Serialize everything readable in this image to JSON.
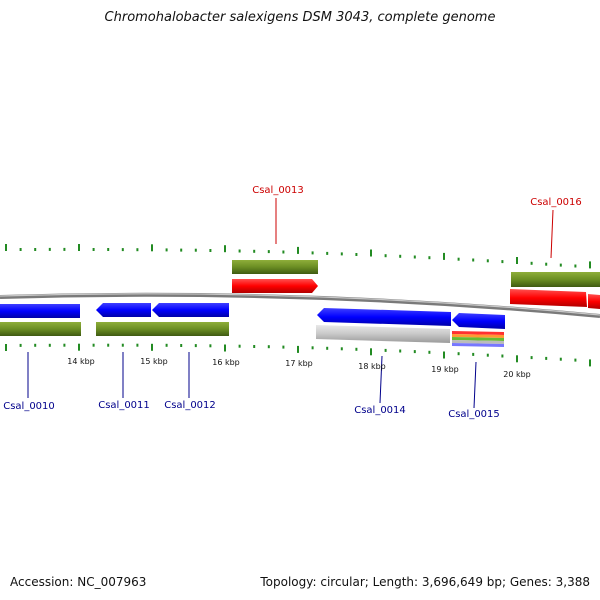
{
  "title": "Chromohalobacter salexigens DSM 3043, complete genome",
  "footer": {
    "accession": "Accession: NC_007963",
    "summary": "Topology: circular; Length: 3,696,649 bp; Genes: 3,388"
  },
  "scale_labels": [
    "14 kbp",
    "15 kbp",
    "16 kbp",
    "17 kbp",
    "18 kbp",
    "19 kbp",
    "20 kbp"
  ],
  "gene_labels": {
    "Csal_0010": "Csal_0010",
    "Csal_0011": "Csal_0011",
    "Csal_0012": "Csal_0012",
    "Csal_0013": "Csal_0013",
    "Csal_0014": "Csal_0014",
    "Csal_0015": "Csal_0015",
    "Csal_0016": "Csal_0016"
  },
  "colors": {
    "forward_label": "#cc0000",
    "reverse_label": "#00008b",
    "cds_forward": "#ff0000",
    "cds_reverse": "#0000ff",
    "gene_band": "#6b8e23",
    "backbone": "#888888",
    "tick": "#228b22",
    "pseudo": "#c8c8c8"
  }
}
